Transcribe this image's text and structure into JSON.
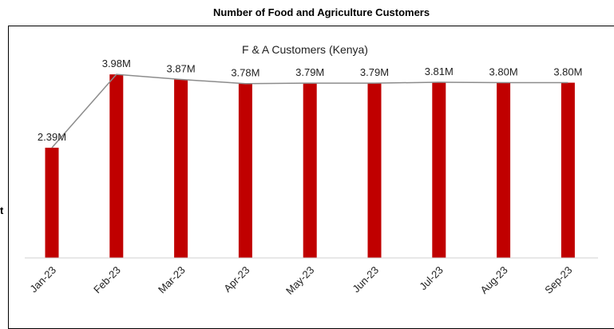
{
  "page": {
    "outer_title": "Number of Food and Agriculture Customers",
    "left_fragment": "t"
  },
  "chart_data": {
    "type": "bar",
    "title": "F & A Customers (Kenya)",
    "categories": [
      "Jan-23",
      "Feb-23",
      "Mar-23",
      "Apr-23",
      "May-23",
      "Jun-23",
      "Jul-23",
      "Aug-23",
      "Sep-23"
    ],
    "values": [
      2.39,
      3.98,
      3.87,
      3.78,
      3.79,
      3.79,
      3.81,
      3.8,
      3.8
    ],
    "data_labels": [
      "2.39M",
      "3.98M",
      "3.87M",
      "3.78M",
      "3.79M",
      "3.79M",
      "3.81M",
      "3.80M",
      "3.80M"
    ],
    "units": "M",
    "overlay_line": true,
    "ylim": [
      0,
      4.0
    ],
    "grid": false,
    "xlabel": "",
    "ylabel": "",
    "colors": {
      "bar": "#c00000",
      "line": "#8c8c8c",
      "axis": "#d0d0d0"
    }
  }
}
